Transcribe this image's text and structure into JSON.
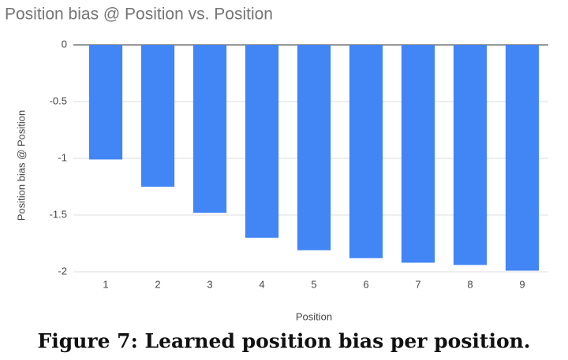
{
  "chart_data": {
    "type": "bar",
    "title": "Position bias @ Position vs. Position",
    "x_label": "Position",
    "y_label": "Position bias @ Position",
    "categories": [
      "1",
      "2",
      "3",
      "4",
      "5",
      "6",
      "7",
      "8",
      "9"
    ],
    "values": [
      -1.01,
      -1.25,
      -1.48,
      -1.7,
      -1.81,
      -1.88,
      -1.92,
      -1.94,
      -1.99
    ],
    "color": "#4285f4",
    "ylim": [
      -2,
      0
    ],
    "yticks": [
      0,
      -0.5,
      -1,
      -1.5,
      -2
    ],
    "grid": true
  },
  "caption": "Figure 7: Learned position bias per position."
}
